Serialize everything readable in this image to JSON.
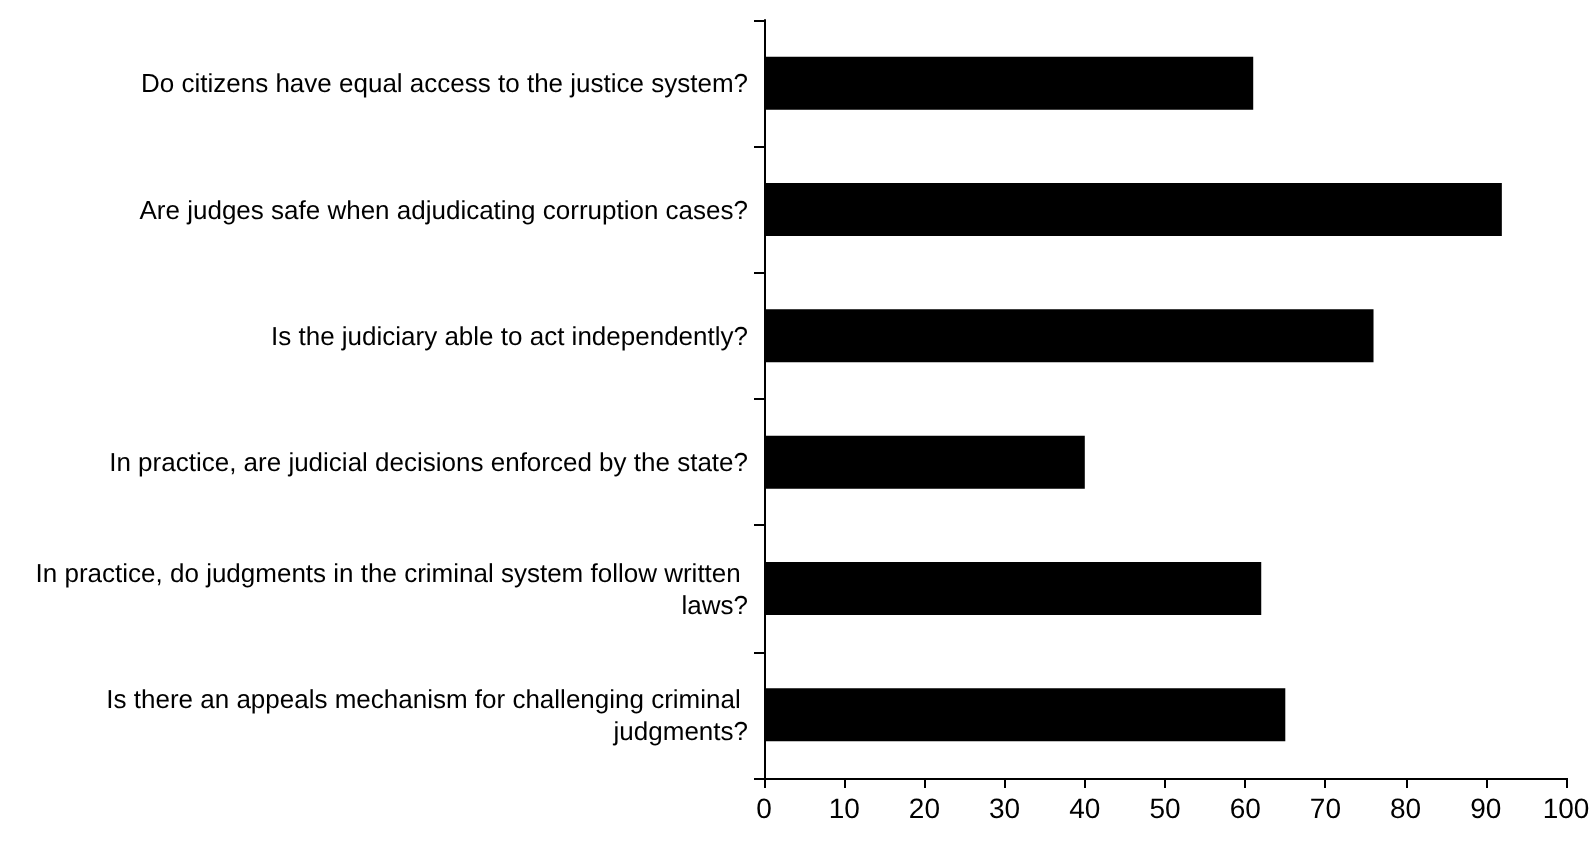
{
  "chart_data": {
    "type": "bar",
    "orientation": "horizontal",
    "categories": [
      "Do citizens have equal access to the justice system?",
      "Are judges safe when adjudicating corruption cases?",
      "Is the judiciary able to act independently?",
      "In practice, are judicial decisions enforced by the state?",
      "In practice, do judgments in the criminal system follow written laws?",
      "Is there an appeals mechanism for challenging criminal judgments?"
    ],
    "values": [
      61,
      92,
      76,
      40,
      62,
      65
    ],
    "color": "#000000",
    "xlim": [
      0,
      100
    ],
    "xticks": [
      0,
      10,
      20,
      30,
      40,
      50,
      60,
      70,
      80,
      90,
      100
    ],
    "grid": false
  }
}
